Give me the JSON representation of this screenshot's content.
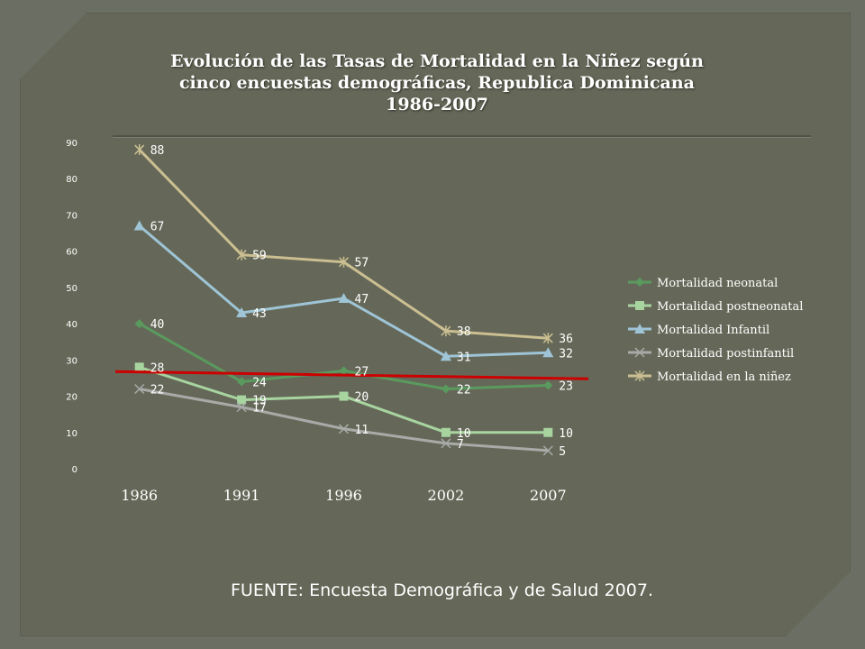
{
  "slide": {
    "title_line1": "Evolución de las Tasas de Mortalidad en la Niñez según",
    "title_line2": "cinco encuestas demográficas, Republica Dominicana",
    "title_line3": "1986-2007",
    "source": "FUENTE: Encuesta Demográfica y de Salud 2007."
  },
  "colors": {
    "background": "#656858",
    "reference_line": "#cc0000"
  },
  "chart_data": {
    "type": "line",
    "categories": [
      "1986",
      "1991",
      "1996",
      "2002",
      "2007"
    ],
    "ylim": [
      0,
      90
    ],
    "yticks": [
      0,
      10,
      20,
      30,
      40,
      50,
      60,
      70,
      80,
      90
    ],
    "grid": false,
    "legend_position": "right",
    "series": [
      {
        "name": "Mortalidad neonatal",
        "values": [
          40,
          24,
          27,
          22,
          23
        ],
        "color": "#5a9a5e",
        "marker": "diamond"
      },
      {
        "name": "Mortalidad postneonatal",
        "values": [
          28,
          19,
          20,
          10,
          10
        ],
        "color": "#a8d4a0",
        "marker": "square"
      },
      {
        "name": "Mortalidad Infantil",
        "values": [
          67,
          43,
          47,
          31,
          32
        ],
        "color": "#9ec4d6",
        "marker": "triangle"
      },
      {
        "name": "Mortalidad postinfantil",
        "values": [
          22,
          17,
          11,
          7,
          5
        ],
        "color": "#a8aaa8",
        "marker": "x"
      },
      {
        "name": "Mortalidad en la niñez",
        "values": [
          88,
          59,
          57,
          38,
          36
        ],
        "color": "#cbbf92",
        "marker": "star"
      }
    ],
    "reference_line": {
      "values_start": 26.8,
      "values_end": 24.8
    }
  }
}
